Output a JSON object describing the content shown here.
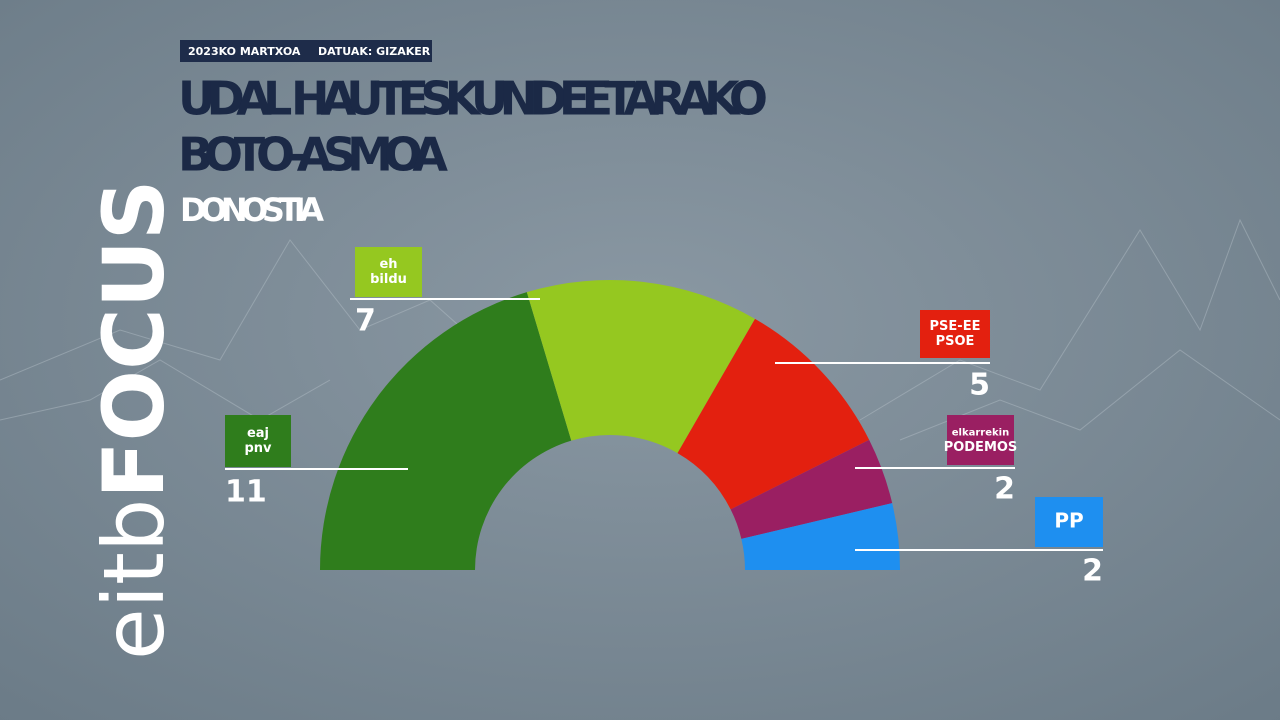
{
  "chart_data": {
    "type": "half-donut",
    "date": "2023KO MARTXOA",
    "source": "DATUAK: GIZAKER",
    "title_lines": [
      "UDAL HAUTESKUNDEETARAKO",
      "BOTO-ASMOA"
    ],
    "subtitle": "DONOSTIA",
    "values": [
      11,
      7,
      5,
      2,
      2
    ],
    "colors": [
      "#2f7d1c",
      "#95c820",
      "#e3200f",
      "#9a1f62",
      "#1e8ff0"
    ],
    "logos": [
      [
        "eaj",
        "pnv"
      ],
      [
        "eh",
        "bildu"
      ],
      [
        "PSE-EE",
        "PSOE"
      ],
      [
        "elkarrekin",
        "PODEMOS"
      ],
      [
        "PP"
      ]
    ]
  },
  "brand": [
    "eitb",
    "FOCUS"
  ]
}
